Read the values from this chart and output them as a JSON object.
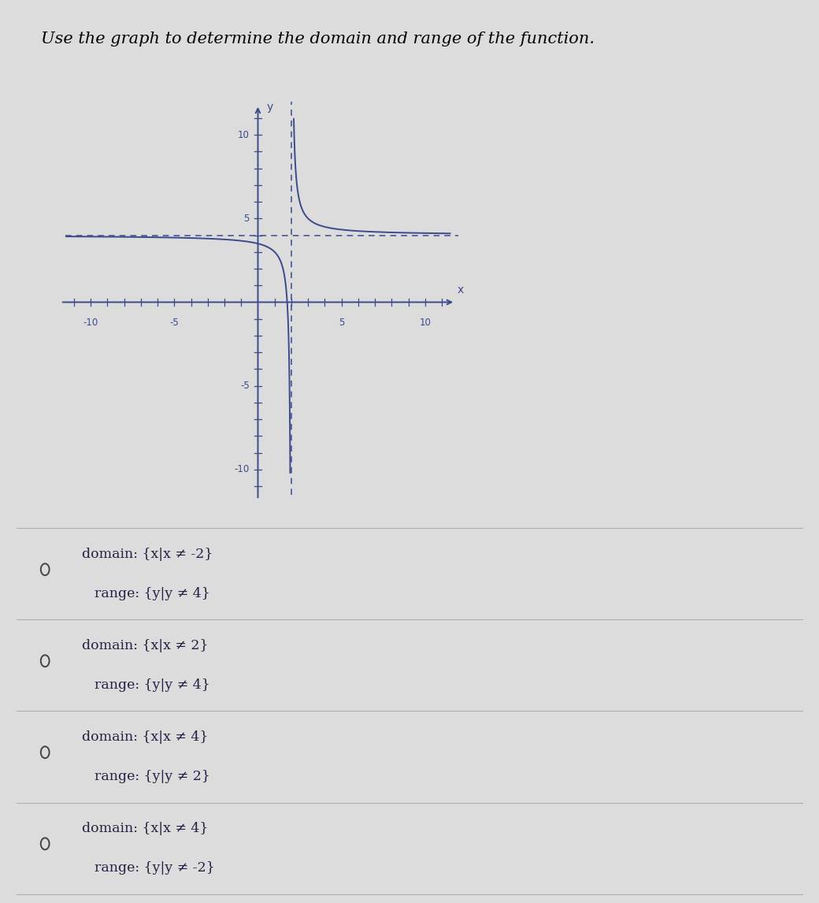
{
  "title": "Use the graph to determine the domain and range of the function.",
  "title_fontsize": 15,
  "graph_xlim": [
    -11.5,
    12
  ],
  "graph_ylim": [
    -11.5,
    12
  ],
  "graph_xticks": [
    -10,
    -5,
    5,
    10
  ],
  "graph_yticks": [
    -10,
    -5,
    5,
    10
  ],
  "graph_xtick_labels": [
    "-10",
    "-5",
    "5",
    "10"
  ],
  "graph_ytick_labels": [
    "-10",
    "-5",
    "5",
    "10"
  ],
  "vertical_asymptote": 2,
  "horizontal_asymptote": 4,
  "curve_color": "#3a4a8a",
  "background_color": "#dcdcdc",
  "panel_color": "#e8e8e8",
  "options_bg_color": "#e0e0e0",
  "text_color": "#2a2a5a",
  "options": [
    {
      "domain": "{x|x ≠ -2}",
      "range": "{y|y ≠ 4}"
    },
    {
      "domain": "{x|x ≠ 2}",
      "range": "{y|y ≠ 4}"
    },
    {
      "domain": "{x|x ≠ 4}",
      "range": "{y|y ≠ 2}"
    },
    {
      "domain": "{x|x ≠ 4}",
      "range": "{y|y ≠ -2}"
    }
  ]
}
